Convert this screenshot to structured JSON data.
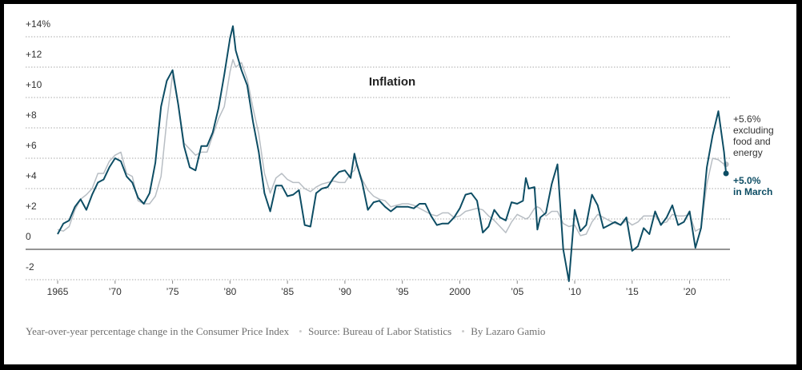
{
  "chart_data": {
    "type": "line",
    "title": "Inflation",
    "x": [
      1965.0,
      1965.5,
      1966.0,
      1966.5,
      1967.0,
      1967.5,
      1968.0,
      1968.5,
      1969.0,
      1969.5,
      1970.0,
      1970.5,
      1971.0,
      1971.5,
      1972.0,
      1972.5,
      1973.0,
      1973.5,
      1974.0,
      1974.5,
      1975.0,
      1975.5,
      1976.0,
      1976.5,
      1977.0,
      1977.5,
      1978.0,
      1978.5,
      1979.0,
      1979.5,
      1980.0,
      1980.25,
      1980.5,
      1981.0,
      1981.5,
      1982.0,
      1982.5,
      1983.0,
      1983.5,
      1984.0,
      1984.5,
      1985.0,
      1985.5,
      1986.0,
      1986.5,
      1987.0,
      1987.5,
      1988.0,
      1988.5,
      1989.0,
      1989.5,
      1990.0,
      1990.5,
      1990.83,
      1991.0,
      1991.5,
      1992.0,
      1992.5,
      1993.0,
      1993.5,
      1994.0,
      1994.5,
      1995.0,
      1995.5,
      1996.0,
      1996.5,
      1997.0,
      1997.5,
      1998.0,
      1998.5,
      1999.0,
      1999.5,
      2000.0,
      2000.5,
      2001.0,
      2001.5,
      2002.0,
      2002.5,
      2003.0,
      2003.5,
      2004.0,
      2004.5,
      2005.0,
      2005.5,
      2005.75,
      2006.0,
      2006.5,
      2006.75,
      2007.0,
      2007.5,
      2008.0,
      2008.5,
      2009.0,
      2009.5,
      2010.0,
      2010.5,
      2011.0,
      2011.5,
      2012.0,
      2012.5,
      2013.0,
      2013.5,
      2014.0,
      2014.5,
      2015.0,
      2015.5,
      2016.0,
      2016.5,
      2017.0,
      2017.5,
      2018.0,
      2018.5,
      2019.0,
      2019.5,
      2020.0,
      2020.5,
      2021.0,
      2021.5,
      2022.0,
      2022.5,
      2023.0,
      2023.17
    ],
    "series": [
      {
        "color": "#b8bec4",
        "values": [
          1.3,
          1.2,
          1.5,
          2.6,
          3.3,
          3.6,
          4.0,
          5.0,
          5.0,
          5.8,
          6.2,
          6.4,
          5.0,
          4.8,
          3.2,
          3.0,
          3.0,
          3.5,
          4.8,
          8.5,
          11.5,
          9.5,
          7.0,
          6.6,
          6.2,
          6.4,
          6.4,
          7.5,
          8.6,
          9.4,
          11.7,
          12.5,
          12.0,
          12.3,
          11.2,
          9.3,
          7.6,
          5.0,
          3.7,
          4.7,
          5.0,
          4.6,
          4.4,
          4.4,
          4.0,
          3.8,
          4.1,
          4.3,
          4.4,
          4.5,
          4.4,
          4.4,
          5.0,
          5.2,
          5.6,
          4.6,
          3.9,
          3.5,
          3.3,
          3.2,
          2.8,
          2.9,
          3.0,
          3.0,
          2.9,
          2.7,
          2.5,
          2.3,
          2.2,
          2.4,
          2.4,
          2.1,
          2.2,
          2.5,
          2.6,
          2.7,
          2.6,
          2.2,
          1.9,
          1.5,
          1.1,
          1.8,
          2.3,
          2.1,
          2.0,
          2.1,
          2.7,
          2.8,
          2.7,
          2.2,
          2.5,
          2.5,
          1.7,
          1.5,
          1.6,
          0.9,
          1.0,
          1.8,
          2.3,
          2.1,
          1.9,
          1.7,
          1.6,
          1.9,
          1.6,
          1.8,
          2.2,
          2.2,
          2.2,
          1.7,
          1.8,
          2.3,
          2.2,
          2.2,
          2.3,
          1.2,
          1.4,
          4.3,
          6.0,
          5.9,
          5.6,
          5.6
        ]
      },
      {
        "color": "#0d4d64",
        "values": [
          1.0,
          1.7,
          1.9,
          2.8,
          3.3,
          2.6,
          3.6,
          4.4,
          4.6,
          5.4,
          6.0,
          5.8,
          4.8,
          4.4,
          3.4,
          3.0,
          3.7,
          5.7,
          9.4,
          11.1,
          11.8,
          9.5,
          6.8,
          5.4,
          5.2,
          6.8,
          6.8,
          7.7,
          9.3,
          11.5,
          13.9,
          14.7,
          13.1,
          11.8,
          10.8,
          8.4,
          6.4,
          3.7,
          2.5,
          4.2,
          4.2,
          3.5,
          3.6,
          3.9,
          1.6,
          1.5,
          3.7,
          4.0,
          4.1,
          4.7,
          5.1,
          5.2,
          4.7,
          6.3,
          5.7,
          4.4,
          2.6,
          3.1,
          3.2,
          2.8,
          2.5,
          2.8,
          2.8,
          2.8,
          2.7,
          3.0,
          3.0,
          2.2,
          1.6,
          1.7,
          1.7,
          2.1,
          2.7,
          3.6,
          3.7,
          3.2,
          1.1,
          1.5,
          2.6,
          2.1,
          1.9,
          3.1,
          3.0,
          3.2,
          4.7,
          4.0,
          4.1,
          1.3,
          2.1,
          2.4,
          4.3,
          5.6,
          0.0,
          -2.1,
          2.6,
          1.2,
          1.6,
          3.6,
          2.9,
          1.4,
          1.6,
          1.8,
          1.6,
          2.1,
          -0.1,
          0.2,
          1.4,
          1.0,
          2.5,
          1.6,
          2.1,
          2.9,
          1.6,
          1.8,
          2.5,
          0.1,
          1.4,
          5.4,
          7.5,
          9.1,
          6.4,
          5.0
        ]
      }
    ],
    "xlim": [
      1963.5,
      2024
    ],
    "ylim": [
      -2.2,
      14.8
    ],
    "xticks": [
      1965,
      {
        "value": 1970,
        "label": "’70"
      },
      {
        "value": 1975,
        "label": "’75"
      },
      {
        "value": 1980,
        "label": "’80"
      },
      {
        "value": 1985,
        "label": "’85"
      },
      {
        "value": 1990,
        "label": "’90"
      },
      {
        "value": 1995,
        "label": "’95"
      },
      2000,
      {
        "value": 2005,
        "label": "’05"
      },
      {
        "value": 2010,
        "label": "’10"
      },
      {
        "value": 2015,
        "label": "’15"
      },
      {
        "value": 2020,
        "label": "’20"
      }
    ],
    "yticks": [
      {
        "value": 14,
        "label": "+14%"
      },
      {
        "value": 12,
        "label": "+12"
      },
      {
        "value": 10,
        "label": "+10"
      },
      {
        "value": 8,
        "label": "+8"
      },
      {
        "value": 6,
        "label": "+6"
      },
      {
        "value": 4,
        "label": "+4"
      },
      {
        "value": 2,
        "label": "+2"
      },
      0,
      -2
    ],
    "grid": true,
    "annotations": [
      {
        "lines": [
          "+5.6%",
          "excluding",
          "food and",
          "energy"
        ]
      },
      {
        "lines": [
          "+5.0%",
          "in March"
        ]
      }
    ],
    "notes": [
      "Year-over-year percentage change in the Consumer Price Index",
      "Source: Bureau of Labor Statistics",
      "By Lazaro Gamio"
    ]
  }
}
